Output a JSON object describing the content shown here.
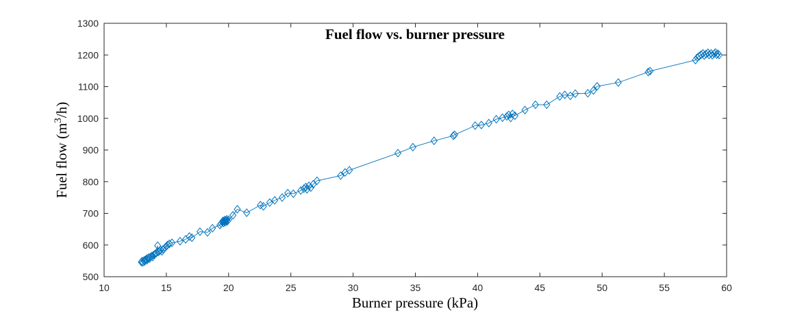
{
  "chart_data": {
    "type": "scatter",
    "title": "Fuel flow vs. burner pressure",
    "xlabel": "Burner pressure (kPa)",
    "ylabel": "Fuel flow (m³/h)",
    "xlim": [
      10,
      60
    ],
    "ylim": [
      500,
      1300
    ],
    "xticks": [
      10,
      15,
      20,
      25,
      30,
      35,
      40,
      45,
      50,
      55,
      60
    ],
    "yticks": [
      500,
      600,
      700,
      800,
      900,
      1000,
      1100,
      1200,
      1300
    ],
    "grid": false,
    "legend": null,
    "box": true,
    "tick_direction": "in",
    "marker": "diamond",
    "marker_fill": "none",
    "line_style": "solid",
    "colors": {
      "series": "#0072BD",
      "axis": "#262626",
      "text": "#000000",
      "background": "#ffffff"
    },
    "points": [
      [
        13.0,
        546
      ],
      [
        13.05,
        549
      ],
      [
        13.1,
        545
      ],
      [
        13.2,
        551
      ],
      [
        13.25,
        548
      ],
      [
        13.3,
        553
      ],
      [
        13.4,
        556
      ],
      [
        13.45,
        552
      ],
      [
        13.5,
        558
      ],
      [
        13.6,
        561
      ],
      [
        13.65,
        557
      ],
      [
        13.75,
        563
      ],
      [
        13.85,
        566
      ],
      [
        13.9,
        562
      ],
      [
        14.0,
        569
      ],
      [
        14.1,
        572
      ],
      [
        14.2,
        575
      ],
      [
        14.3,
        598
      ],
      [
        14.35,
        578
      ],
      [
        14.45,
        581
      ],
      [
        14.55,
        584
      ],
      [
        14.65,
        580
      ],
      [
        14.75,
        587
      ],
      [
        14.9,
        592
      ],
      [
        15.0,
        596
      ],
      [
        15.1,
        600
      ],
      [
        15.25,
        604
      ],
      [
        15.45,
        607
      ],
      [
        16.1,
        612
      ],
      [
        16.55,
        618
      ],
      [
        16.85,
        627
      ],
      [
        17.05,
        623
      ],
      [
        17.7,
        642
      ],
      [
        18.3,
        640
      ],
      [
        18.7,
        653
      ],
      [
        19.3,
        663
      ],
      [
        19.4,
        668
      ],
      [
        19.5,
        672
      ],
      [
        19.55,
        676
      ],
      [
        19.6,
        670
      ],
      [
        19.65,
        675
      ],
      [
        19.7,
        679
      ],
      [
        19.75,
        672
      ],
      [
        19.8,
        677
      ],
      [
        19.85,
        681
      ],
      [
        19.9,
        675
      ],
      [
        20.0,
        680
      ],
      [
        20.35,
        694
      ],
      [
        20.7,
        713
      ],
      [
        21.45,
        702
      ],
      [
        22.55,
        726
      ],
      [
        22.8,
        722
      ],
      [
        23.3,
        734
      ],
      [
        23.7,
        741
      ],
      [
        24.3,
        750
      ],
      [
        24.75,
        764
      ],
      [
        25.2,
        762
      ],
      [
        25.8,
        772
      ],
      [
        26.05,
        778
      ],
      [
        26.2,
        783
      ],
      [
        26.3,
        776
      ],
      [
        26.45,
        787
      ],
      [
        26.6,
        781
      ],
      [
        26.8,
        792
      ],
      [
        27.1,
        803
      ],
      [
        29.0,
        819
      ],
      [
        29.35,
        829
      ],
      [
        29.7,
        836
      ],
      [
        33.6,
        890
      ],
      [
        34.8,
        909
      ],
      [
        36.5,
        929
      ],
      [
        38.05,
        945
      ],
      [
        38.15,
        948
      ],
      [
        39.8,
        977
      ],
      [
        40.3,
        979
      ],
      [
        40.9,
        985
      ],
      [
        41.5,
        997
      ],
      [
        42.0,
        1002
      ],
      [
        42.35,
        1006
      ],
      [
        42.5,
        1011
      ],
      [
        42.65,
        1001
      ],
      [
        42.8,
        1014
      ],
      [
        43.0,
        1008
      ],
      [
        43.8,
        1026
      ],
      [
        44.65,
        1043
      ],
      [
        45.55,
        1043
      ],
      [
        46.6,
        1069
      ],
      [
        47.0,
        1074
      ],
      [
        47.45,
        1071
      ],
      [
        47.85,
        1078
      ],
      [
        48.85,
        1079
      ],
      [
        49.3,
        1088
      ],
      [
        49.6,
        1101
      ],
      [
        51.3,
        1113
      ],
      [
        53.7,
        1146
      ],
      [
        53.85,
        1149
      ],
      [
        57.5,
        1184
      ],
      [
        57.65,
        1192
      ],
      [
        57.8,
        1196
      ],
      [
        57.95,
        1201
      ],
      [
        58.1,
        1205
      ],
      [
        58.2,
        1198
      ],
      [
        58.35,
        1203
      ],
      [
        58.5,
        1207
      ],
      [
        58.6,
        1200
      ],
      [
        58.75,
        1205
      ],
      [
        58.85,
        1199
      ],
      [
        59.0,
        1204
      ],
      [
        59.1,
        1208
      ],
      [
        59.2,
        1201
      ],
      [
        59.3,
        1204
      ],
      [
        59.4,
        1200
      ]
    ]
  }
}
